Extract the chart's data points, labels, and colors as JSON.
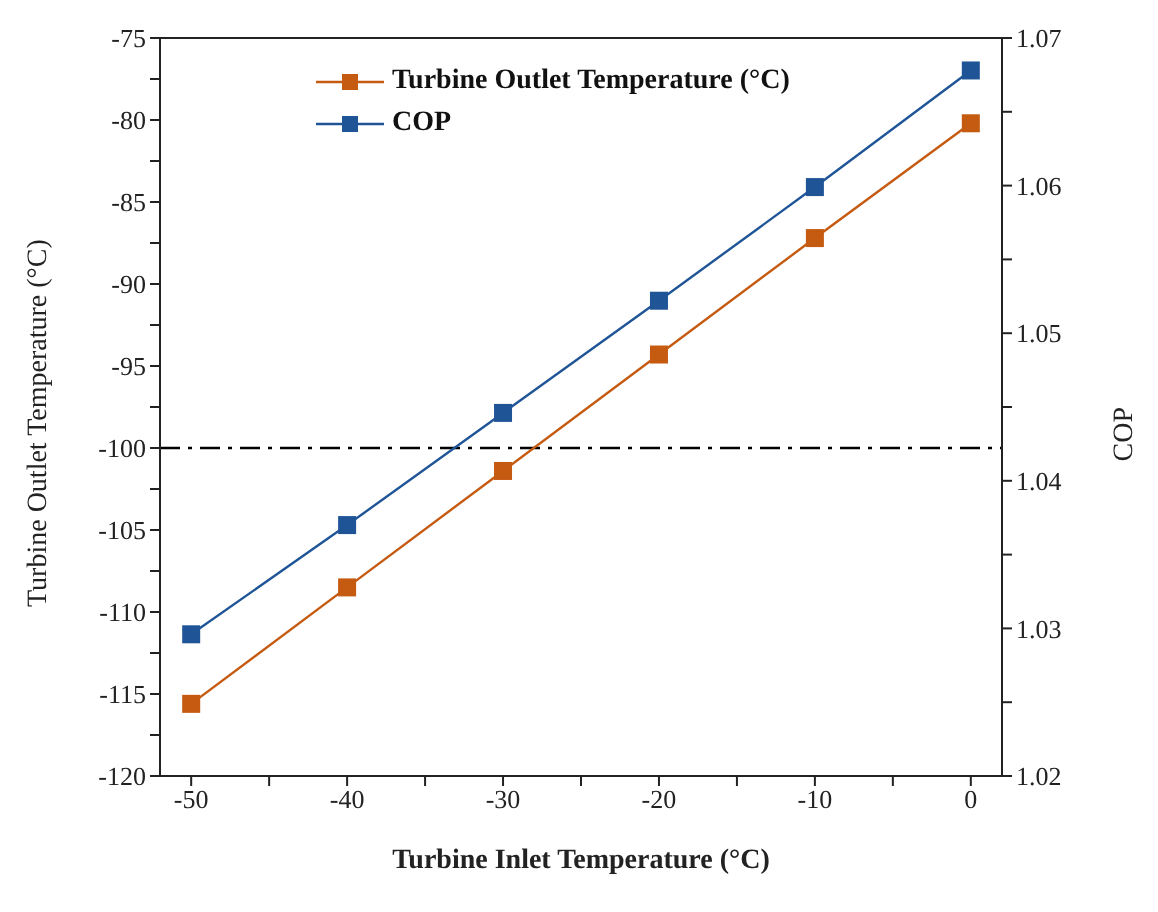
{
  "chart_data": {
    "type": "line",
    "xlabel": "Turbine Inlet Temperature (°C)",
    "ylabel": "Turbine Outlet Temperature (°C)",
    "y2label": "COP",
    "x": [
      -50,
      -40,
      -30,
      -20,
      -10,
      0
    ],
    "series": [
      {
        "name": "Turbine Outlet Temperature (°C)",
        "color": "#c55a11",
        "values": [
          -115.6,
          -108.5,
          -101.4,
          -94.3,
          -87.2,
          -80.2
        ]
      },
      {
        "name": "COP",
        "color": "#1f5597",
        "axis": "y2",
        "values": [
          1.0296,
          1.037,
          1.0446,
          1.0522,
          1.0599,
          1.0678
        ]
      }
    ],
    "xlim": [
      -52,
      2
    ],
    "xticks": [
      -50,
      {
        "value": -45,
        "label": null
      },
      -40,
      {
        "value": -35,
        "label": null
      },
      -30,
      {
        "value": -25,
        "label": null
      },
      -20,
      {
        "value": -15,
        "label": null
      },
      -10,
      {
        "value": -5,
        "label": null
      },
      0
    ],
    "ylim": [
      -120,
      -75
    ],
    "yticks": [
      -120,
      {
        "value": -117.5,
        "label": null
      },
      -115,
      {
        "value": -112.5,
        "label": null
      },
      -110,
      {
        "value": -107.5,
        "label": null
      },
      -105,
      {
        "value": -102.5,
        "label": null
      },
      -100,
      {
        "value": -97.5,
        "label": null
      },
      -95,
      {
        "value": -92.5,
        "label": null
      },
      -90,
      {
        "value": -87.5,
        "label": null
      },
      -85,
      {
        "value": -82.5,
        "label": null
      },
      -80,
      {
        "value": -77.5,
        "label": null
      },
      -75
    ],
    "y2lim": [
      1.02,
      1.07
    ],
    "y2ticks": [
      1.02,
      {
        "value": 1.025,
        "label": null
      },
      1.03,
      {
        "value": 1.035,
        "label": null
      },
      1.04,
      {
        "value": 1.045,
        "label": null
      },
      1.05,
      {
        "value": 1.055,
        "label": null
      },
      1.06,
      {
        "value": 1.065,
        "label": null
      },
      1.07
    ],
    "ref_lines": [
      {
        "axis": "y",
        "value": -100,
        "color": "#000000",
        "line_style": "dashdot"
      }
    ],
    "marker": "square",
    "legend": "top left"
  }
}
